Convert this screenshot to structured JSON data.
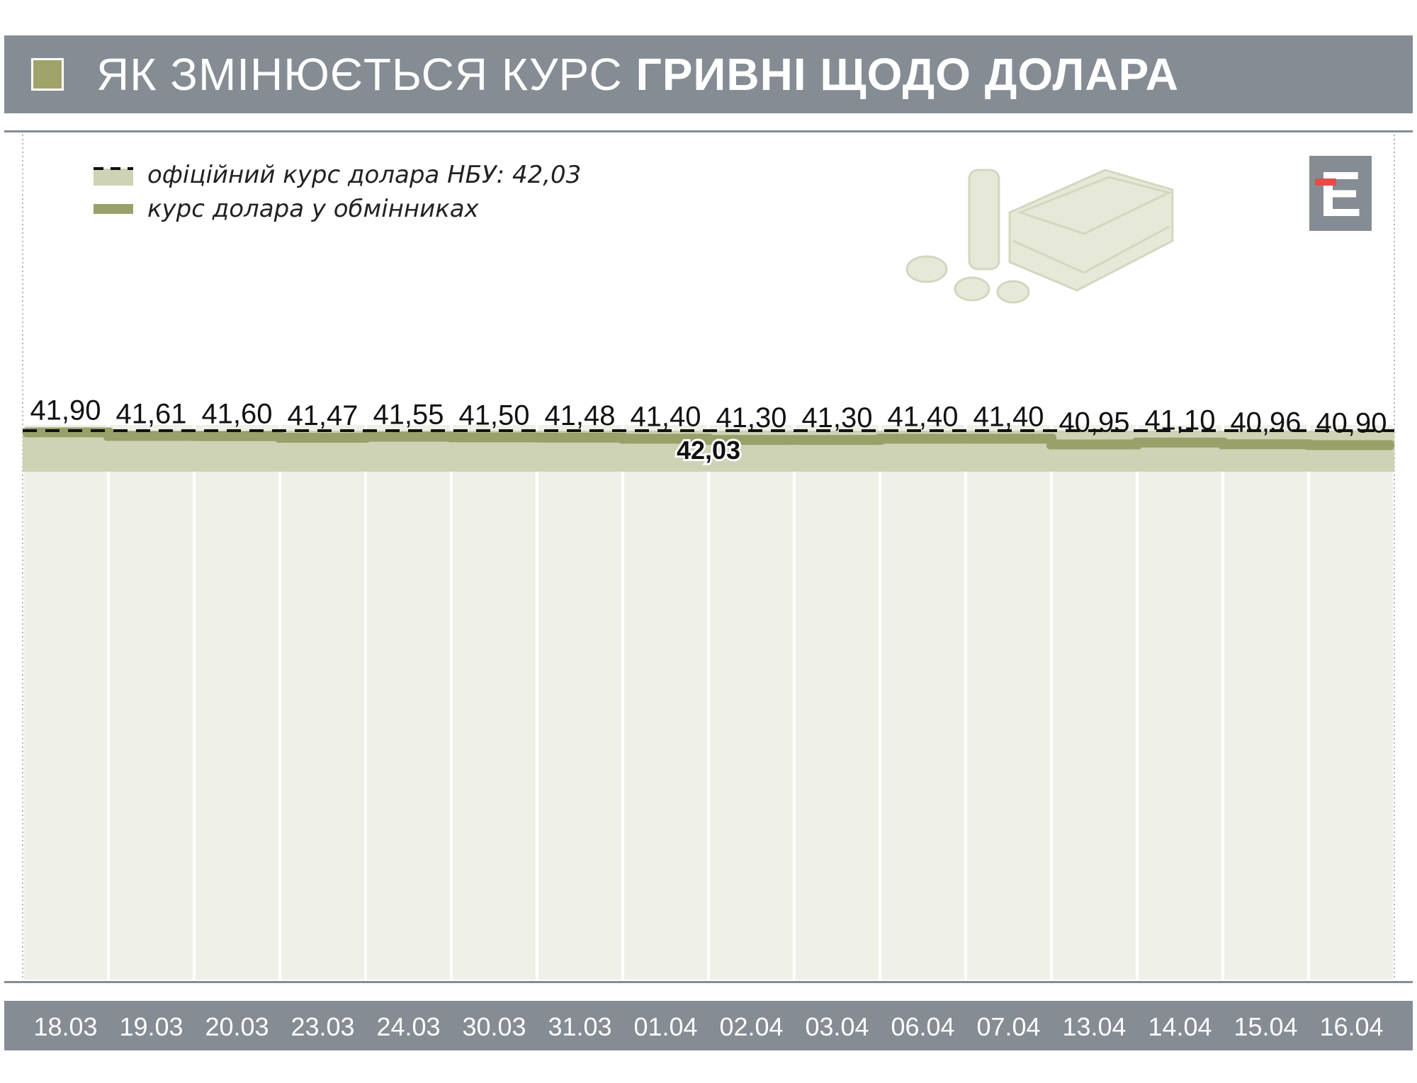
{
  "header": {
    "title_light": "ЯК ЗМІНЮЄТЬСЯ КУРС",
    "title_bold": "ГРИВНІ ЩОДО ДОЛАРА"
  },
  "legend": {
    "official": "офіційний курс долара НБУ: 42,03",
    "exchange": "курс долара у обмінниках"
  },
  "logo": {
    "letter": "Е"
  },
  "colors": {
    "header_bg": "#858c94",
    "exchange_line": "#9aa06a",
    "band": "#cdd3b4",
    "column_fill": "#eff0e8",
    "logo_bg": "#858c94",
    "logo_accent": "#e84a4a"
  },
  "chart_data": {
    "type": "line",
    "x": [
      "18.03",
      "19.03",
      "20.03",
      "23.03",
      "24.03",
      "30.03",
      "31.03",
      "01.04",
      "02.04",
      "03.04",
      "06.04",
      "07.04",
      "13.04",
      "14.04",
      "15.04",
      "16.04"
    ],
    "series": [
      {
        "name": "курс долара у обмінниках",
        "values": [
          41.9,
          41.61,
          41.6,
          41.47,
          41.55,
          41.5,
          41.48,
          41.4,
          41.3,
          41.3,
          41.4,
          41.4,
          40.95,
          41.1,
          40.96,
          40.9
        ],
        "labels": [
          "41,90",
          "41,61",
          "41,60",
          "41,47",
          "41,55",
          "41,50",
          "41,48",
          "41,40",
          "41,30",
          "41,30",
          "41,40",
          "41,40",
          "40,95",
          "41,10",
          "40,96",
          "40,90"
        ]
      }
    ],
    "reference_line": {
      "name": "офіційний курс долара НБУ",
      "value": 42.03,
      "label": "42,03",
      "style": "dashed"
    },
    "title": "",
    "xlabel": "",
    "ylabel": "",
    "grid": true,
    "legend_position": "top-left"
  }
}
